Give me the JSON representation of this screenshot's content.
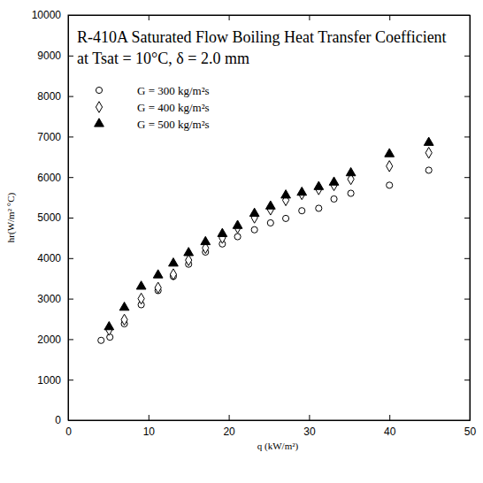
{
  "chart_data": {
    "type": "scatter",
    "title": "R-410A Saturated Flow Boiling Heat Transfer Coefficient",
    "subtitle": "at Tsat = 10°C, δ = 2.0 mm",
    "x_label": "q (kW/m²)",
    "y_label": "hr(W/m² °C)",
    "xlim": [
      0,
      50
    ],
    "xticks": [
      0,
      10,
      20,
      30,
      40,
      50
    ],
    "ylim": [
      0,
      10000
    ],
    "yticks": [
      0,
      1000,
      2000,
      3000,
      4000,
      5000,
      6000,
      7000,
      8000,
      9000,
      10000
    ],
    "legend": "upper left",
    "grid": false,
    "series": [
      {
        "name": "G = 300 kg/m²s",
        "color": "#000000",
        "marker": "circle-open",
        "x": [
          4.1,
          5.2,
          7.0,
          9.1,
          11.2,
          13.1,
          15.0,
          17.1,
          19.2,
          21.1,
          23.2,
          25.2,
          27.1,
          29.1,
          31.2,
          33.1,
          35.2,
          40.0,
          44.9
        ],
        "values": [
          1970,
          2050,
          2380,
          2850,
          3200,
          3550,
          3850,
          4150,
          4350,
          4530,
          4700,
          4870,
          4980,
          5170,
          5230,
          5460,
          5600,
          5800,
          6170
        ]
      },
      {
        "name": "G = 400 kg/m²s",
        "color": "#000000",
        "marker": "diamond-open",
        "x": [
          5.1,
          7.0,
          9.1,
          11.2,
          13.1,
          15.0,
          17.1,
          19.2,
          21.1,
          23.2,
          25.2,
          27.1,
          29.1,
          31.2,
          33.1,
          35.2,
          40.0,
          44.9
        ],
        "values": [
          2230,
          2480,
          3000,
          3270,
          3600,
          3950,
          4250,
          4500,
          4750,
          5000,
          5200,
          5430,
          5580,
          5700,
          5800,
          5950,
          6270,
          6600
        ]
      },
      {
        "name": "G = 500 kg/m²s",
        "color": "#000000",
        "marker": "triangle",
        "x": [
          5.1,
          7.0,
          9.1,
          11.2,
          13.1,
          15.0,
          17.1,
          19.2,
          21.1,
          23.2,
          25.2,
          27.1,
          29.1,
          31.2,
          33.1,
          35.2,
          40.0,
          44.9
        ],
        "values": [
          2300,
          2780,
          3300,
          3580,
          3870,
          4130,
          4400,
          4600,
          4800,
          5100,
          5280,
          5550,
          5620,
          5760,
          5870,
          6100,
          6570,
          6850
        ]
      }
    ]
  }
}
